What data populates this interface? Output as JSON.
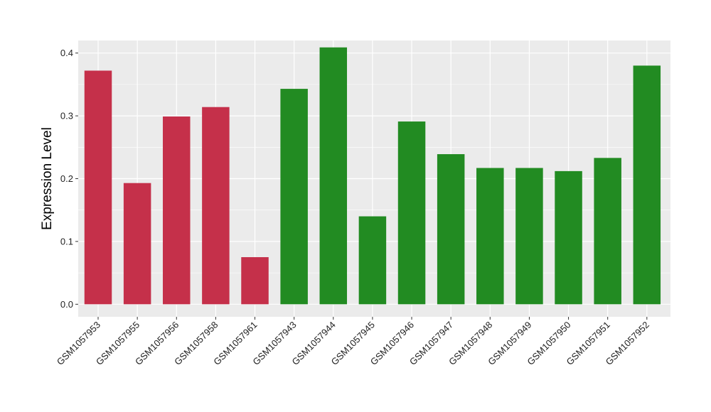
{
  "chart_data": {
    "type": "bar",
    "title": "",
    "xlabel": "",
    "ylabel": "Expression Level",
    "ylim": [
      -0.02,
      0.42
    ],
    "yticks": [
      0.0,
      0.1,
      0.2,
      0.3,
      0.4
    ],
    "ytick_labels": [
      "0.0",
      "0.1",
      "0.2",
      "0.3",
      "0.4"
    ],
    "grid": true,
    "legend": "none",
    "categories": [
      "GSM1057953",
      "GSM1057955",
      "GSM1057956",
      "GSM1057958",
      "GSM1057961",
      "GSM1057943",
      "GSM1057944",
      "GSM1057945",
      "GSM1057946",
      "GSM1057947",
      "GSM1057948",
      "GSM1057949",
      "GSM1057950",
      "GSM1057951",
      "GSM1057952"
    ],
    "values": [
      0.372,
      0.193,
      0.299,
      0.314,
      0.075,
      0.343,
      0.409,
      0.14,
      0.291,
      0.239,
      0.217,
      0.217,
      0.212,
      0.233,
      0.38
    ],
    "colors": [
      "#c5304a",
      "#c5304a",
      "#c5304a",
      "#c5304a",
      "#c5304a",
      "#228b22",
      "#228b22",
      "#228b22",
      "#228b22",
      "#228b22",
      "#228b22",
      "#228b22",
      "#228b22",
      "#228b22",
      "#228b22"
    ],
    "panel_background": "#ebebeb",
    "grid_color": "#ffffff"
  }
}
